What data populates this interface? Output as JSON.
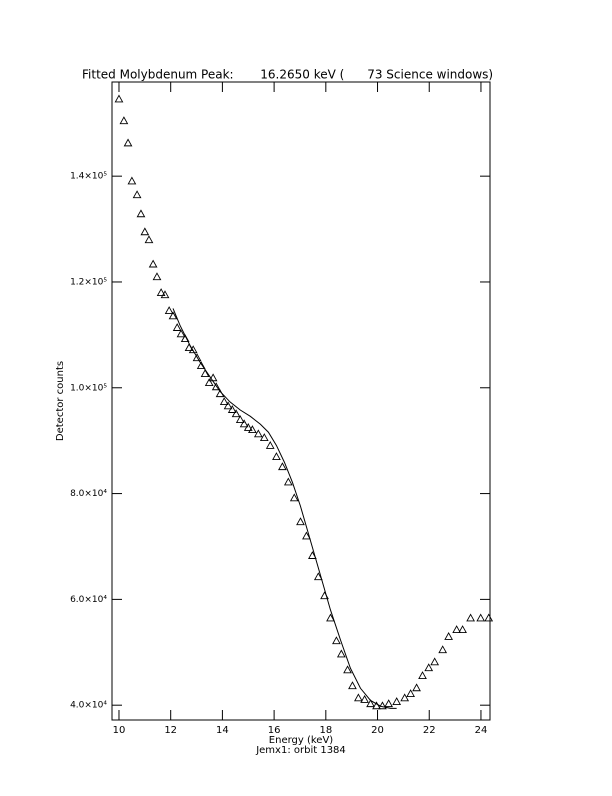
{
  "chart_data": {
    "type": "scatter",
    "title": "Fitted Molybdenum Peak:       16.2650 keV (      73 Science windows)",
    "x_label": "Energy (keV)",
    "subtitle": "Jemx1: orbit 1384",
    "y_label": "Detector counts",
    "xlim": [
      9.73,
      24.35
    ],
    "ylim": [
      37200,
      157800
    ],
    "xticks": [
      10,
      12,
      14,
      16,
      18,
      20,
      22,
      24
    ],
    "yticks": [
      {
        "value": 40000,
        "label": "4.0×10⁴"
      },
      {
        "value": 60000,
        "label": "6.0×10⁴"
      },
      {
        "value": 80000,
        "label": "8.0×10⁴"
      },
      {
        "value": 100000,
        "label": "1.0×10⁵"
      },
      {
        "value": 120000,
        "label": "1.2×10⁵"
      },
      {
        "value": 140000,
        "label": "1.4×10⁵"
      }
    ],
    "color": "#000000",
    "series": [
      {
        "type": "scatter",
        "x": [
          10.0,
          10.19,
          10.35,
          10.5,
          10.7,
          10.85,
          11.0,
          11.16,
          11.32,
          11.47,
          11.63,
          11.78,
          11.94,
          12.09,
          12.25,
          12.4,
          12.56,
          12.71,
          12.87,
          13.02,
          13.18,
          13.33,
          13.49,
          13.64,
          13.76,
          13.91,
          14.07,
          14.22,
          14.38,
          14.53,
          14.69,
          14.84,
          15.0,
          15.16,
          15.39,
          15.62,
          15.85,
          16.09,
          16.32,
          16.55,
          16.78,
          17.02,
          17.25,
          17.48,
          17.71,
          17.95,
          18.18,
          18.41,
          18.6,
          18.84,
          19.03,
          19.26,
          19.5,
          19.73,
          19.96,
          20.19,
          20.43,
          20.74,
          21.05,
          21.28,
          21.51,
          21.74,
          21.98,
          22.21,
          22.52,
          22.75,
          23.06,
          23.29,
          23.6,
          23.99,
          24.3
        ],
        "values": [
          154500,
          150400,
          146200,
          139000,
          136400,
          132800,
          129400,
          127900,
          123300,
          120900,
          117900,
          117500,
          114500,
          113500,
          111300,
          110100,
          109200,
          107500,
          107100,
          105600,
          104100,
          102600,
          100900,
          101800,
          100100,
          98800,
          97300,
          96500,
          95800,
          95000,
          93900,
          93100,
          92400,
          92000,
          91200,
          90500,
          89000,
          86900,
          85000,
          82100,
          79100,
          74600,
          71900,
          68200,
          64200,
          60600,
          56400,
          52100,
          49600,
          46600,
          43600,
          41300,
          41000,
          40200,
          39800,
          39800,
          40200,
          40600,
          41300,
          42100,
          43200,
          45500,
          47000,
          48100,
          50400,
          52900,
          54200,
          54200,
          56400,
          56400,
          56400
        ]
      },
      {
        "type": "line",
        "x": [
          12.09,
          12.36,
          12.75,
          13.14,
          13.53,
          13.91,
          14.3,
          14.69,
          15.08,
          15.47,
          15.78,
          16.09,
          16.4,
          16.71,
          17.02,
          17.4,
          17.79,
          18.18,
          18.57,
          18.95,
          19.34,
          19.73,
          20.12,
          20.5,
          20.74
        ],
        "values": [
          115000,
          111800,
          108000,
          104800,
          102000,
          99300,
          97300,
          95800,
          94600,
          93100,
          91600,
          89100,
          85900,
          82100,
          77600,
          71200,
          64600,
          58000,
          52300,
          47000,
          43200,
          40900,
          39800,
          39400,
          39400
        ]
      }
    ]
  }
}
